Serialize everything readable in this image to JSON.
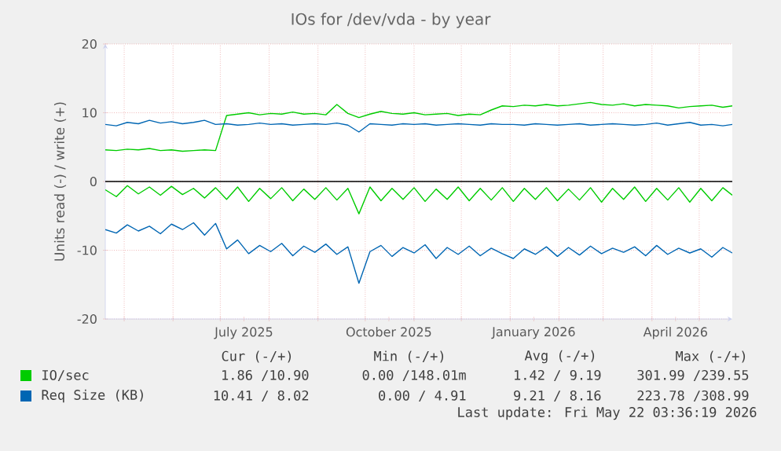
{
  "chart_data": {
    "type": "line",
    "title": "IOs for /dev/vda - by year",
    "ylabel": "Units read (-) / write (+)",
    "x": [
      "2025-04-19",
      "2025-04-26",
      "2025-05-03",
      "2025-05-10",
      "2025-05-17",
      "2025-05-24",
      "2025-05-31",
      "2025-06-07",
      "2025-06-14",
      "2025-06-21",
      "2025-06-28",
      "2025-07-05",
      "2025-07-12",
      "2025-07-19",
      "2025-07-26",
      "2025-08-02",
      "2025-08-09",
      "2025-08-16",
      "2025-08-23",
      "2025-08-30",
      "2025-09-06",
      "2025-09-13",
      "2025-09-20",
      "2025-09-27",
      "2025-10-04",
      "2025-10-11",
      "2025-10-18",
      "2025-10-25",
      "2025-11-01",
      "2025-11-08",
      "2025-11-15",
      "2025-11-22",
      "2025-11-29",
      "2025-12-06",
      "2025-12-13",
      "2025-12-20",
      "2025-12-27",
      "2026-01-03",
      "2026-01-10",
      "2026-01-17",
      "2026-01-24",
      "2026-01-31",
      "2026-02-07",
      "2026-02-14",
      "2026-02-21",
      "2026-02-28",
      "2026-03-07",
      "2026-03-14",
      "2026-03-21",
      "2026-03-28",
      "2026-04-04",
      "2026-04-11",
      "2026-04-18",
      "2026-04-25",
      "2026-05-02",
      "2026-05-09",
      "2026-05-16",
      "2026-05-22"
    ],
    "series": [
      {
        "name": "IO/sec",
        "color": "#00cc00",
        "values": [
          4.6,
          4.5,
          4.7,
          4.6,
          4.8,
          4.5,
          4.6,
          4.4,
          4.5,
          4.6,
          4.5,
          9.6,
          9.8,
          10.0,
          9.7,
          9.9,
          9.8,
          10.1,
          9.8,
          9.9,
          9.7,
          11.2,
          9.9,
          9.3,
          9.8,
          10.2,
          9.9,
          9.8,
          10.0,
          9.7,
          9.8,
          9.9,
          9.6,
          9.8,
          9.7,
          10.4,
          11.0,
          10.9,
          11.1,
          11.0,
          11.2,
          11.0,
          11.1,
          11.3,
          11.5,
          11.2,
          11.1,
          11.3,
          11.0,
          11.2,
          11.1,
          11.0,
          10.7,
          10.9,
          11.0,
          11.1,
          10.8,
          11.0
        ]
      },
      {
        "color": "#00cc00",
        "values": [
          -1.2,
          -2.2,
          -0.6,
          -1.8,
          -0.8,
          -2.0,
          -0.7,
          -1.9,
          -1.0,
          -2.4,
          -0.9,
          -2.6,
          -0.8,
          -2.9,
          -1.0,
          -2.5,
          -0.9,
          -2.8,
          -1.1,
          -2.6,
          -0.9,
          -2.7,
          -1.0,
          -4.7,
          -0.8,
          -2.8,
          -1.0,
          -2.6,
          -0.9,
          -2.9,
          -1.1,
          -2.6,
          -0.8,
          -2.8,
          -1.0,
          -2.7,
          -0.9,
          -2.9,
          -1.0,
          -2.6,
          -0.9,
          -2.8,
          -1.1,
          -2.7,
          -0.9,
          -3.0,
          -1.0,
          -2.6,
          -0.8,
          -2.9,
          -1.0,
          -2.7,
          -0.9,
          -3.0,
          -1.0,
          -2.8,
          -0.9,
          -2.0
        ]
      },
      {
        "name": "Req Size (KB)",
        "color": "#0066b3",
        "values": [
          8.3,
          8.1,
          8.6,
          8.4,
          8.9,
          8.5,
          8.7,
          8.4,
          8.6,
          8.9,
          8.3,
          8.4,
          8.2,
          8.3,
          8.5,
          8.3,
          8.4,
          8.2,
          8.3,
          8.4,
          8.3,
          8.5,
          8.2,
          7.2,
          8.4,
          8.3,
          8.2,
          8.4,
          8.3,
          8.4,
          8.2,
          8.3,
          8.4,
          8.3,
          8.2,
          8.4,
          8.3,
          8.3,
          8.2,
          8.4,
          8.3,
          8.2,
          8.3,
          8.4,
          8.2,
          8.3,
          8.4,
          8.3,
          8.2,
          8.3,
          8.5,
          8.2,
          8.4,
          8.6,
          8.2,
          8.3,
          8.1,
          8.3
        ]
      },
      {
        "color": "#0066b3",
        "values": [
          -7.0,
          -7.5,
          -6.3,
          -7.2,
          -6.5,
          -7.6,
          -6.2,
          -7.0,
          -6.0,
          -7.8,
          -6.1,
          -9.8,
          -8.5,
          -10.5,
          -9.3,
          -10.2,
          -9.0,
          -10.8,
          -9.4,
          -10.3,
          -9.1,
          -10.6,
          -9.5,
          -14.8,
          -10.2,
          -9.3,
          -10.9,
          -9.6,
          -10.4,
          -9.2,
          -11.2,
          -9.6,
          -10.6,
          -9.4,
          -10.8,
          -9.7,
          -10.5,
          -11.2,
          -9.8,
          -10.6,
          -9.5,
          -10.9,
          -9.6,
          -10.7,
          -9.4,
          -10.5,
          -9.7,
          -10.3,
          -9.5,
          -10.8,
          -9.3,
          -10.6,
          -9.7,
          -10.4,
          -9.8,
          -11.0,
          -9.6,
          -10.4
        ]
      }
    ],
    "xlim": [
      "2025-04-19",
      "2026-05-22"
    ],
    "xticks": [
      {
        "value": "2025-05-01",
        "label": null
      },
      {
        "value": "2025-06-01",
        "label": null
      },
      {
        "value": "2025-07-01",
        "label": null
      },
      {
        "value": "2025-08-01",
        "label": null
      },
      {
        "value": "2025-09-01",
        "label": null
      },
      {
        "value": "2025-10-01",
        "label": null
      },
      {
        "value": "2025-11-01",
        "label": null
      },
      {
        "value": "2025-12-01",
        "label": null
      },
      {
        "value": "2026-01-01",
        "label": null
      },
      {
        "value": "2026-02-01",
        "label": null
      },
      {
        "value": "2026-03-01",
        "label": null
      },
      {
        "value": "2026-04-01",
        "label": null
      },
      {
        "value": "2026-05-01",
        "label": null
      },
      {
        "value": "2025-07-16",
        "label": "July 2025"
      },
      {
        "value": "2025-10-16",
        "label": "October 2025"
      },
      {
        "value": "2026-01-16",
        "label": "January 2026"
      },
      {
        "value": "2026-04-16",
        "label": "April 2026"
      }
    ],
    "ylim": [
      -20,
      20
    ],
    "yticks": [
      -20,
      -10,
      0,
      10,
      20
    ],
    "ref_lines": [
      {
        "axis": "y",
        "value": 0,
        "color": "#000000"
      }
    ],
    "grid": true,
    "legend": "bottom",
    "marker": "none",
    "line_style": "solid",
    "annotations": [
      "Cur (-/+)",
      "Min (-/+)",
      "Avg (-/+)",
      "Max (-/+)",
      "1.86 /10.90",
      "0.00 /148.01m",
      "1.42 / 9.19",
      "301.99 /239.55",
      "10.41 / 8.02",
      "0.00 / 4.91",
      "9.21 / 8.16",
      "223.78 /308.99",
      "Last update: Fri May 22 03:36:19 2026"
    ]
  }
}
